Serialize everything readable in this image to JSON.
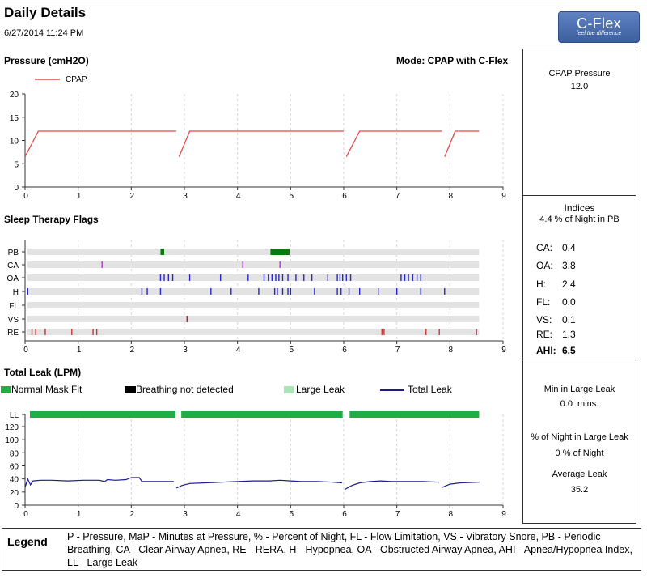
{
  "header": {
    "title": "Daily Details",
    "date": "6/27/2014 11:24 PM",
    "logo_text": "C-Flex",
    "logo_tagline": "feel the difference",
    "mode": "Mode: CPAP with C-Flex"
  },
  "pressure": {
    "title": "Pressure (cmH2O)",
    "legend": "CPAP"
  },
  "flags": {
    "title": "Sleep Therapy Flags"
  },
  "leak": {
    "title": "Total Leak (LPM)",
    "legend": {
      "normal": "Normal Mask Fit",
      "bnd": "Breathing not detected",
      "large": "Large Leak",
      "total": "Total Leak"
    }
  },
  "panel": {
    "cpap_label": "CPAP Pressure",
    "cpap_value": "12.0",
    "indices_title": "Indices",
    "pb_line": "4.4 % of Night in PB",
    "indices": [
      {
        "label": "CA:",
        "value": "0.4"
      },
      {
        "label": "OA:",
        "value": "3.8"
      },
      {
        "label": "H:",
        "value": "2.4"
      },
      {
        "label": "FL:",
        "value": "0.0"
      },
      {
        "label": "VS:",
        "value": "0.1"
      },
      {
        "label": "RE:",
        "value": "1.3"
      }
    ],
    "ahi_label": "AHI:",
    "ahi_value": "6.5",
    "min_large_leak_label": "Min in Large Leak",
    "min_large_leak_value": "0.0  mins.",
    "pct_large_leak_label": "% of Night in Large Leak",
    "pct_large_leak_value": "0 % of Night",
    "avg_leak_label": "Average Leak",
    "avg_leak_value": "35.2"
  },
  "legend": {
    "title": "Legend",
    "text": "P - Pressure, MaP - Minutes at Pressure, % - Percent of Night, FL - Flow Limitation, VS - Vibratory Snore, PB - Periodic Breathing, CA - Clear Airway Apnea, RE - RERA, H - Hypopnea, OA - Obstructed Airway Apnea, AHI - Apnea/Hypopnea Index, LL - Large Leak"
  },
  "colors": {
    "cpap": "#e04848",
    "pb": "#0a7a0a",
    "ca": "#a040c8",
    "oa": "#2828c8",
    "h": "#2828c8",
    "vs": "#b02020",
    "re": "#c03838",
    "normal": "#1fae45",
    "bnd": "#000000",
    "large": "#a8e6b8",
    "total": "#1c1c8c"
  },
  "chart_data": [
    {
      "type": "line",
      "name": "pressure",
      "xlim": [
        0,
        9
      ],
      "ylim": [
        0,
        20
      ],
      "xticks": [
        "0",
        "1",
        "2",
        "3",
        "4",
        "5",
        "6",
        "7",
        "8",
        "9"
      ],
      "yticks": [
        "0",
        "5",
        "10",
        "15",
        "20"
      ],
      "series": [
        {
          "name": "CPAP",
          "segments": [
            [
              [
                0.0,
                6.5
              ],
              [
                0.25,
                12
              ],
              [
                2.85,
                12
              ]
            ],
            [
              [
                2.9,
                6.5
              ],
              [
                3.1,
                12
              ],
              [
                6.0,
                12
              ]
            ],
            [
              [
                6.05,
                6.5
              ],
              [
                6.3,
                12
              ],
              [
                7.85,
                12
              ]
            ],
            [
              [
                7.9,
                6.5
              ],
              [
                8.1,
                12
              ],
              [
                8.55,
                12
              ]
            ]
          ]
        }
      ]
    },
    {
      "type": "scatter",
      "name": "flags",
      "xlim": [
        0,
        9
      ],
      "xticks": [
        "0",
        "1",
        "2",
        "3",
        "4",
        "5",
        "6",
        "7",
        "8",
        "9"
      ],
      "categories": [
        "PB",
        "CA",
        "OA",
        "H",
        "FL",
        "VS",
        "RE"
      ],
      "pb_ranges": [
        [
          2.55,
          2.62
        ],
        [
          4.62,
          4.98
        ]
      ],
      "events": {
        "CA": [
          1.45,
          4.1,
          4.8
        ],
        "OA": [
          2.55,
          2.62,
          2.7,
          2.78,
          3.1,
          3.68,
          4.2,
          4.5,
          4.58,
          4.65,
          4.72,
          4.78,
          4.85,
          4.95,
          5.1,
          5.25,
          5.4,
          5.7,
          5.88,
          5.93,
          5.98,
          6.05,
          6.13,
          7.08,
          7.15,
          7.22,
          7.3,
          7.38,
          7.45
        ],
        "H": [
          0.05,
          2.2,
          2.3,
          2.55,
          3.5,
          3.88,
          4.4,
          4.7,
          4.75,
          4.85,
          4.95,
          5.0,
          5.45,
          5.88,
          5.95,
          6.1,
          6.3,
          6.65,
          7.0,
          7.45,
          7.9
        ],
        "FL": [],
        "VS": [
          3.05
        ],
        "RE": [
          0.13,
          0.2,
          0.38,
          0.88,
          1.28,
          1.35,
          6.72,
          6.76,
          7.55,
          7.8,
          8.5
        ]
      }
    },
    {
      "type": "line",
      "name": "leak",
      "xlim": [
        0,
        9
      ],
      "ylim": [
        0,
        120
      ],
      "xticks": [
        "0",
        "1",
        "2",
        "3",
        "4",
        "5",
        "6",
        "7",
        "8",
        "9"
      ],
      "yticks": [
        "LL",
        "120",
        "100",
        "80",
        "60",
        "40",
        "20",
        "0"
      ],
      "normal_fit_ranges": [
        [
          0.0,
          2.83
        ],
        [
          2.85,
          5.98
        ],
        [
          6.02,
          8.55
        ]
      ],
      "series": [
        {
          "name": "Total Leak",
          "segments": [
            [
              [
                0.0,
                27
              ],
              [
                0.05,
                40
              ],
              [
                0.1,
                31
              ],
              [
                0.15,
                37
              ],
              [
                0.3,
                38
              ],
              [
                0.5,
                38
              ],
              [
                0.8,
                37
              ],
              [
                1.1,
                38
              ],
              [
                1.4,
                38
              ],
              [
                1.5,
                36
              ],
              [
                1.55,
                39
              ],
              [
                1.7,
                38
              ],
              [
                1.9,
                39
              ],
              [
                2.0,
                42
              ],
              [
                2.15,
                42
              ],
              [
                2.2,
                36
              ],
              [
                2.5,
                36
              ],
              [
                2.8,
                36
              ]
            ],
            [
              [
                2.85,
                26
              ],
              [
                2.95,
                30
              ],
              [
                3.1,
                33
              ],
              [
                3.4,
                34
              ],
              [
                3.7,
                35
              ],
              [
                4.0,
                36
              ],
              [
                4.3,
                37
              ],
              [
                4.6,
                37
              ],
              [
                4.8,
                38
              ],
              [
                5.0,
                37
              ],
              [
                5.2,
                36
              ],
              [
                5.5,
                36
              ],
              [
                5.8,
                35
              ],
              [
                5.97,
                34
              ]
            ],
            [
              [
                6.02,
                24
              ],
              [
                6.15,
                30
              ],
              [
                6.3,
                34
              ],
              [
                6.5,
                36
              ],
              [
                6.7,
                37
              ],
              [
                6.9,
                36
              ],
              [
                7.2,
                36
              ],
              [
                7.5,
                36
              ],
              [
                7.8,
                35
              ]
            ],
            [
              [
                7.85,
                27
              ],
              [
                8.0,
                32
              ],
              [
                8.2,
                34
              ],
              [
                8.55,
                35
              ]
            ]
          ]
        }
      ]
    }
  ]
}
